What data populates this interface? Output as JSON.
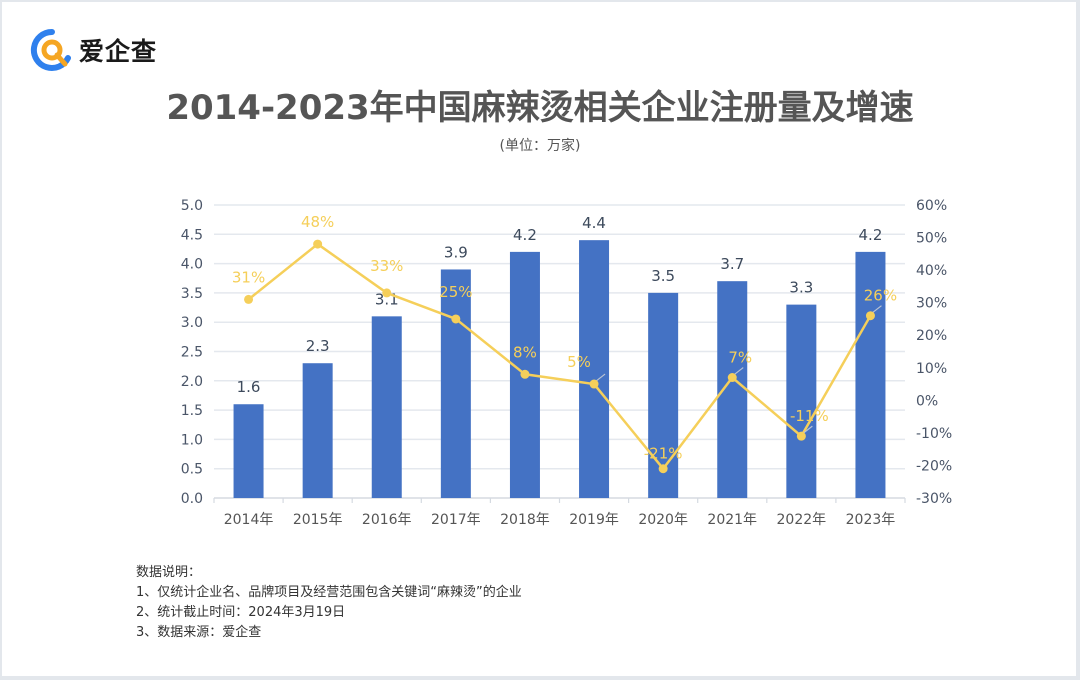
{
  "brand": {
    "name": "爱企查"
  },
  "chart_data": {
    "type": "bar+line",
    "title": "2014-2023年中国麻辣烫相关企业注册量及增速",
    "subtitle": "(单位：万家)",
    "categories": [
      "2014年",
      "2015年",
      "2016年",
      "2017年",
      "2018年",
      "2019年",
      "2020年",
      "2021年",
      "2022年",
      "2023年"
    ],
    "series": [
      {
        "name": "注册量",
        "type": "bar",
        "axis": "left",
        "color": "#4472c4",
        "values": [
          1.6,
          2.3,
          3.1,
          3.9,
          4.2,
          4.4,
          3.5,
          3.7,
          3.3,
          4.2
        ],
        "labels": [
          "1.6",
          "2.3",
          "3.1",
          "3.9",
          "4.2",
          "4.4",
          "3.5",
          "3.7",
          "3.3",
          "4.2"
        ]
      },
      {
        "name": "增速",
        "type": "line",
        "axis": "right",
        "color": "#f5cf5a",
        "values": [
          31,
          48,
          33,
          25,
          8,
          5,
          -21,
          7,
          -11,
          26
        ],
        "labels": [
          "31%",
          "48%",
          "33%",
          "25%",
          "8%",
          "5%",
          "-21%",
          "7%",
          "-11%",
          "26%"
        ]
      }
    ],
    "y_left": {
      "min": 0,
      "max": 5,
      "step": 0.5,
      "ticks": [
        "0.0",
        "0.5",
        "1.0",
        "1.5",
        "2.0",
        "2.5",
        "3.0",
        "3.5",
        "4.0",
        "4.5",
        "5.0"
      ]
    },
    "y_right": {
      "min": -30,
      "max": 60,
      "step": 10,
      "ticks": [
        "-30%",
        "-20%",
        "-10%",
        "0%",
        "10%",
        "20%",
        "30%",
        "40%",
        "50%",
        "60%"
      ]
    },
    "grid": true,
    "legend": "none"
  },
  "notes": {
    "heading": "数据说明：",
    "items": [
      "1、仅统计企业名、品牌项目及经营范围包含关键词“麻辣烫”的企业",
      "2、统计截止时间：2024年3月19日",
      "3、数据来源：爱企查"
    ]
  },
  "colors": {
    "bar": "#4472c4",
    "line": "#f5cf5a",
    "grid": "#e4e8ee",
    "axis_text": "#4a5568"
  }
}
